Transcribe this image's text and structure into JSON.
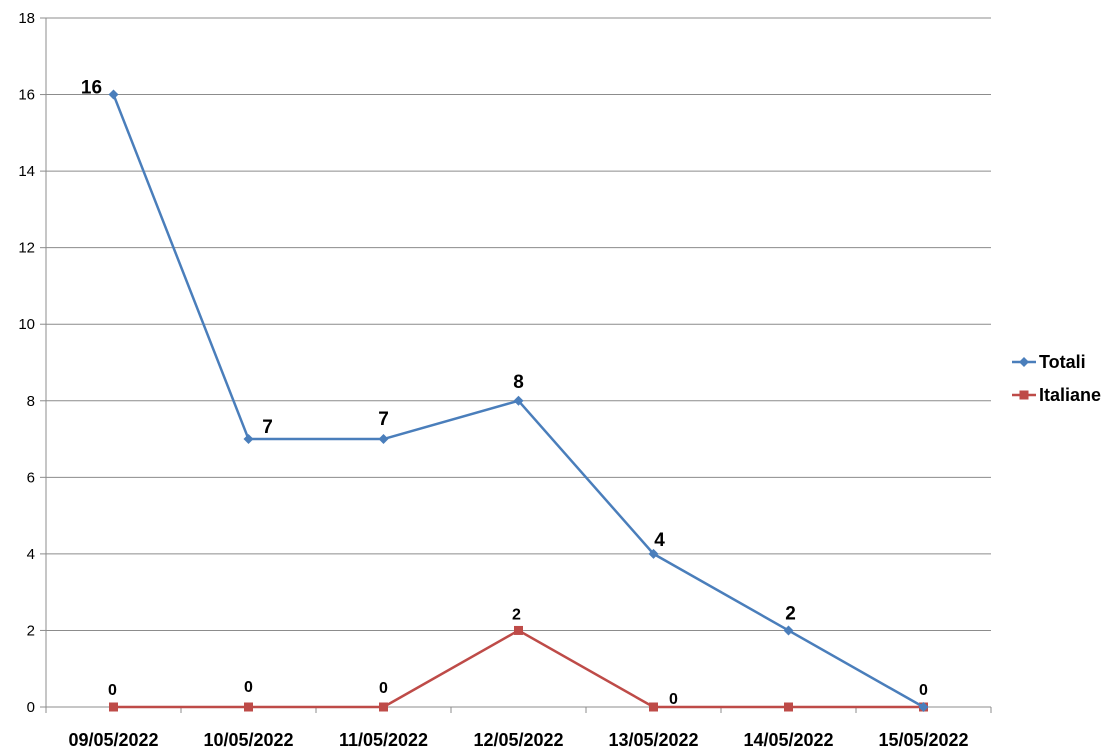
{
  "chart_data": {
    "type": "line",
    "categories": [
      "09/05/2022",
      "10/05/2022",
      "11/05/2022",
      "12/05/2022",
      "13/05/2022",
      "14/05/2022",
      "15/05/2022"
    ],
    "series": [
      {
        "name": "Totali",
        "values": [
          16,
          7,
          7,
          8,
          4,
          2,
          0
        ],
        "color": "#4a7ebb",
        "marker": "diamond",
        "labels": [
          "16",
          "7",
          "7",
          "8",
          "4",
          "2",
          ""
        ]
      },
      {
        "name": "Italiane",
        "values": [
          0,
          0,
          0,
          2,
          0,
          0,
          0
        ],
        "color": "#be4b48",
        "marker": "square",
        "labels": [
          "0",
          "0",
          "0",
          "2",
          "0",
          "",
          "0"
        ]
      }
    ],
    "ylim": [
      0,
      18
    ],
    "yticks": [
      0,
      2,
      4,
      6,
      8,
      10,
      12,
      14,
      16,
      18
    ],
    "grid": true,
    "legend": "right"
  }
}
